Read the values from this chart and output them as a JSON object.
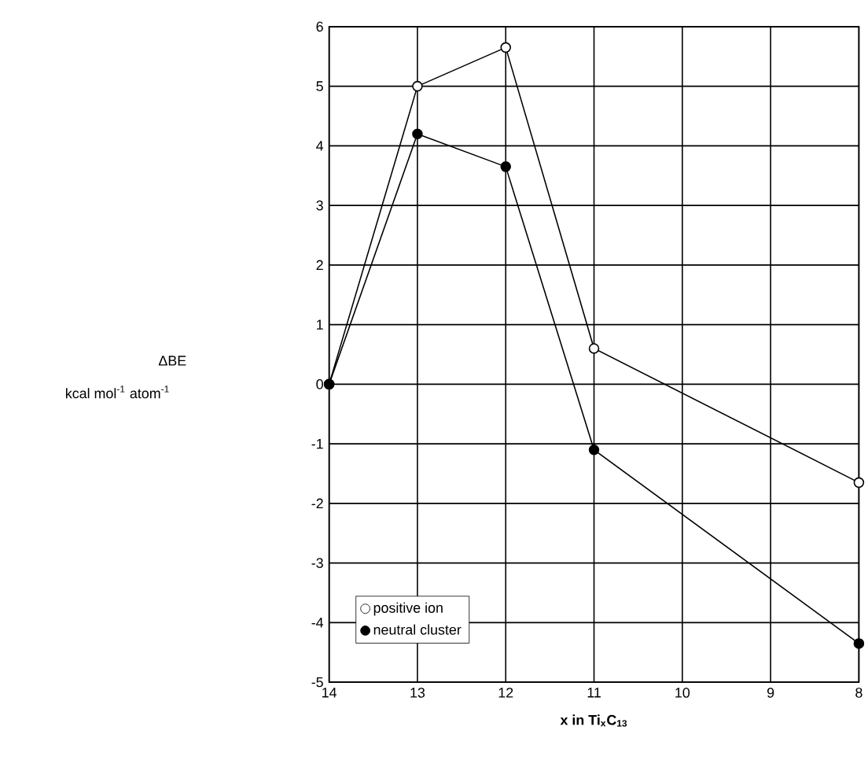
{
  "chart_data": {
    "type": "line",
    "xlabel": "x in Ti$_{x}$C$_{13}$",
    "annotations": [
      "ΔBE",
      "kcal mol$^{-1}$ atom$^{-1}$"
    ],
    "x": [
      14,
      13,
      12,
      11,
      8
    ],
    "series": [
      {
        "name": "positive ion",
        "color": "#000000",
        "values": [
          0,
          5.0,
          5.65,
          0.6,
          -1.65
        ]
      },
      {
        "name": "neutral cluster",
        "color": "#000000",
        "values": [
          0,
          4.2,
          3.65,
          -1.1,
          -4.35
        ]
      }
    ],
    "xlim": [
      14,
      8
    ],
    "ylim": [
      -5,
      6
    ],
    "xticks": [
      14,
      13,
      12,
      11,
      10,
      9,
      8
    ],
    "yticks": [
      -5,
      -4,
      -3,
      -2,
      -1,
      0,
      1,
      2,
      3,
      4,
      5,
      6
    ],
    "grid": true,
    "legend": "bottom left",
    "marker": "circle",
    "line_style": "solid"
  }
}
